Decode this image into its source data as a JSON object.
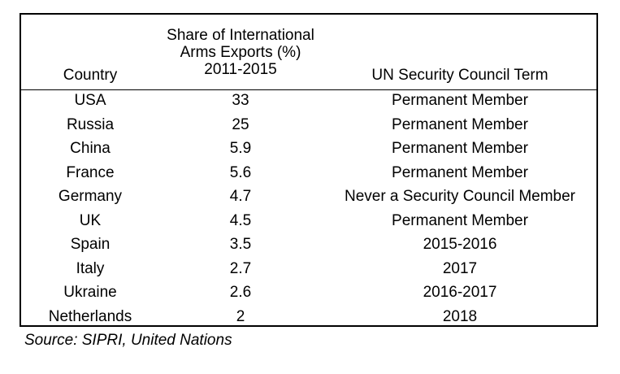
{
  "table": {
    "headers": {
      "country": "Country",
      "share_line1": "Share of International",
      "share_line2": "Arms Exports (%)",
      "share_line3": "2011-2015",
      "term": "UN Security Council Term"
    },
    "rows": [
      {
        "country": "USA",
        "share": "33",
        "term": "Permanent Member"
      },
      {
        "country": "Russia",
        "share": "25",
        "term": "Permanent Member"
      },
      {
        "country": "China",
        "share": "5.9",
        "term": "Permanent Member"
      },
      {
        "country": "France",
        "share": "5.6",
        "term": "Permanent Member"
      },
      {
        "country": "Germany",
        "share": "4.7",
        "term": "Never a Security Council Member"
      },
      {
        "country": "UK",
        "share": "4.5",
        "term": "Permanent Member"
      },
      {
        "country": "Spain",
        "share": "3.5",
        "term": "2015-2016"
      },
      {
        "country": "Italy",
        "share": "2.7",
        "term": "2017"
      },
      {
        "country": "Ukraine",
        "share": "2.6",
        "term": "2016-2017"
      },
      {
        "country": "Netherlands",
        "share": "2",
        "term": "2018"
      }
    ]
  },
  "source": "Source: SIPRI, United Nations"
}
